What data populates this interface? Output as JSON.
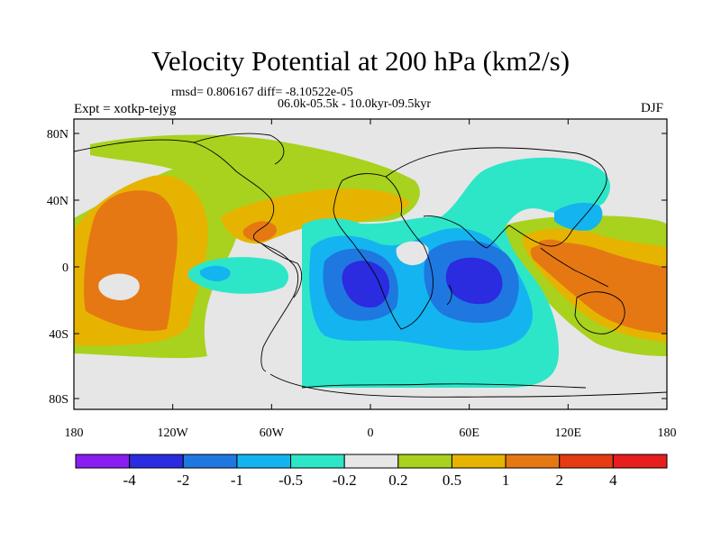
{
  "title": "Velocity Potential at 200 hPa (km2/s)",
  "stats": "rmsd= 0.806167 diff= -8.10522e-05",
  "expt": "Expt = xotkp-tejyg",
  "period": "06.0k-05.5k - 10.0kyr-09.5kyr",
  "season": "DJF",
  "lat_ticks": [
    "80N",
    "40N",
    "0",
    "40S",
    "80S"
  ],
  "lon_ticks": [
    "180",
    "120W",
    "60W",
    "0",
    "60E",
    "120E",
    "180"
  ],
  "colorbar": {
    "labels": [
      "-4",
      "-2",
      "-1",
      "-0.5",
      "-0.2",
      "0.2",
      "0.5",
      "1",
      "2",
      "4"
    ],
    "colors": [
      "#8a1ef0",
      "#2b2be0",
      "#1e78e0",
      "#14b4f0",
      "#2de6c8",
      "#e6e6e6",
      "#a8d21e",
      "#e6b400",
      "#e67814",
      "#e63c14",
      "#e61e1e"
    ]
  },
  "fill_colors": {
    "background": "#e6e6e6",
    "pos_weak": "#a8d21e",
    "pos_mid": "#e6b400",
    "pos_strong": "#e67814",
    "neg_weak": "#2de6c8",
    "neg_mid": "#14b4f0",
    "neg_strong": "#1e78e0",
    "neg_core": "#2b2be0"
  }
}
